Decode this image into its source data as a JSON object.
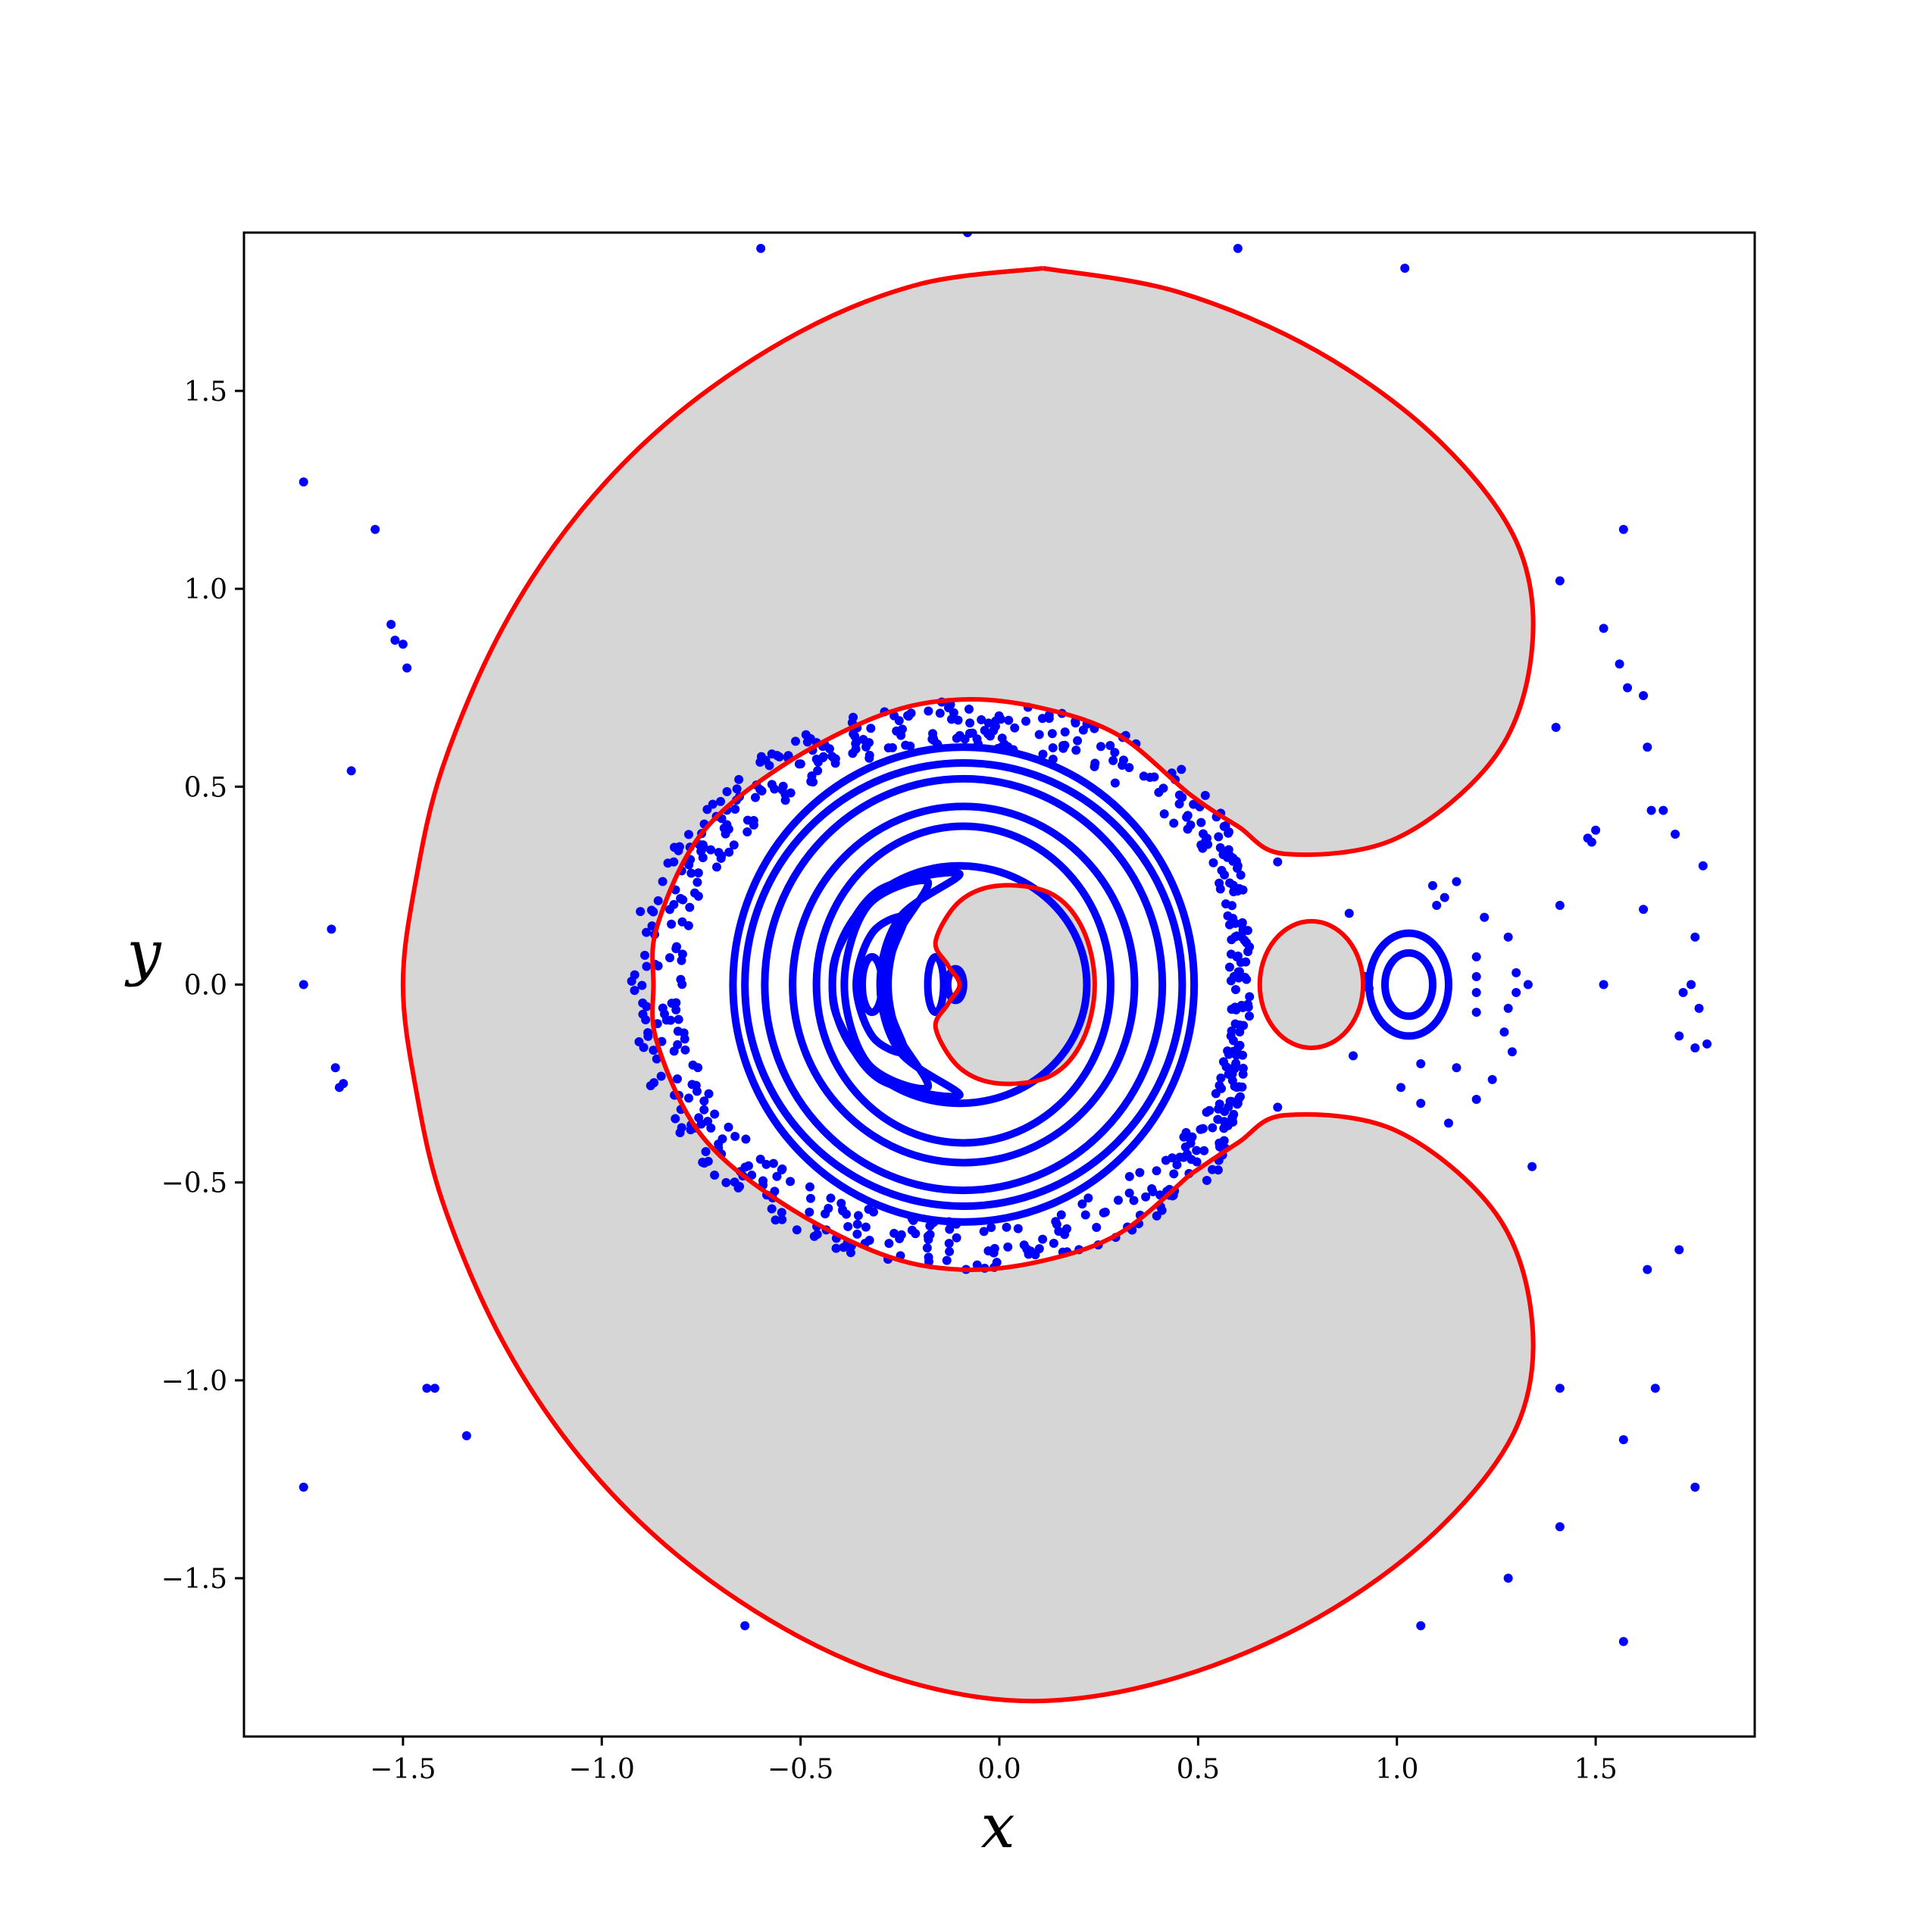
{
  "chart_data": {
    "type": "scatter",
    "title": "",
    "xlabel": "x",
    "ylabel": "y",
    "xlim": [
      -1.9,
      1.9
    ],
    "ylim": [
      -1.9,
      1.9
    ],
    "grid": false,
    "x_ticks": [
      -1.5,
      -1.0,
      -0.5,
      0.0,
      0.5,
      1.0,
      1.5
    ],
    "y_ticks": [
      -1.5,
      -1.0,
      -0.5,
      0.0,
      0.5,
      1.0,
      1.5
    ],
    "x_tick_labels": [
      "−1.5",
      "−1.0",
      "−0.5",
      "0.0",
      "0.5",
      "1.0",
      "1.5"
    ],
    "y_tick_labels": [
      "−1.5",
      "−1.0",
      "−0.5",
      "0.0",
      "0.5",
      "1.0",
      "1.5"
    ],
    "zero_velocity_curves": {
      "color": "#ff0000",
      "forbidden_fill": "#d6d6d6",
      "outer_boundary": [
        [
          0.11,
          1.81
        ],
        [
          -0.2,
          1.77
        ],
        [
          -0.5,
          1.65
        ],
        [
          -0.8,
          1.45
        ],
        [
          -1.05,
          1.2
        ],
        [
          -1.25,
          0.9
        ],
        [
          -1.4,
          0.55
        ],
        [
          -1.47,
          0.25
        ],
        [
          -1.5,
          0.0
        ],
        [
          -1.47,
          -0.25
        ],
        [
          -1.4,
          -0.55
        ],
        [
          -1.25,
          -0.9
        ],
        [
          -1.05,
          -1.2
        ],
        [
          -0.8,
          -1.45
        ],
        [
          -0.5,
          -1.65
        ],
        [
          -0.2,
          -1.77
        ],
        [
          0.11,
          -1.81
        ],
        [
          0.45,
          -1.75
        ],
        [
          0.8,
          -1.6
        ],
        [
          1.1,
          -1.38
        ],
        [
          1.3,
          -1.12
        ],
        [
          1.34,
          -0.85
        ],
        [
          1.25,
          -0.58
        ],
        [
          1.0,
          -0.37
        ],
        [
          0.72,
          -0.33
        ],
        [
          0.6,
          -0.4
        ],
        [
          0.48,
          -0.48
        ]
      ],
      "inner_boundary": [
        [
          0.48,
          -0.48
        ],
        [
          0.3,
          -0.63
        ],
        [
          0.1,
          -0.7
        ],
        [
          -0.1,
          -0.72
        ],
        [
          -0.3,
          -0.68
        ],
        [
          -0.55,
          -0.55
        ],
        [
          -0.75,
          -0.38
        ],
        [
          -0.86,
          -0.15
        ],
        [
          -0.87,
          0.0
        ],
        [
          -0.86,
          0.15
        ],
        [
          -0.75,
          0.38
        ],
        [
          -0.55,
          0.55
        ],
        [
          -0.3,
          0.68
        ],
        [
          -0.1,
          0.72
        ],
        [
          0.1,
          0.7
        ],
        [
          0.3,
          0.63
        ],
        [
          0.48,
          0.48
        ],
        [
          0.6,
          0.4
        ],
        [
          0.72,
          0.33
        ],
        [
          1.0,
          0.37
        ],
        [
          1.25,
          0.58
        ],
        [
          1.34,
          0.85
        ],
        [
          1.3,
          1.12
        ],
        [
          1.1,
          1.38
        ],
        [
          0.8,
          1.6
        ],
        [
          0.45,
          1.75
        ],
        [
          0.11,
          1.81
        ]
      ],
      "primary_region": [
        [
          0.24,
          0.0
        ],
        [
          0.21,
          0.14
        ],
        [
          0.13,
          0.23
        ],
        [
          0.0,
          0.25
        ],
        [
          -0.1,
          0.21
        ],
        [
          -0.16,
          0.11
        ],
        [
          -0.13,
          0.05
        ],
        [
          -0.1,
          0.0
        ],
        [
          -0.13,
          -0.05
        ],
        [
          -0.16,
          -0.11
        ],
        [
          -0.1,
          -0.21
        ],
        [
          0.0,
          -0.25
        ],
        [
          0.13,
          -0.23
        ],
        [
          0.21,
          -0.14
        ]
      ],
      "secondary_region": {
        "cx": 0.785,
        "cy": 0.0,
        "rx": 0.13,
        "ry": 0.16
      }
    },
    "orbit_series": {
      "color": "#0000ff",
      "invariant_curves": [
        {
          "type": "ellipse",
          "cx": -0.09,
          "cy": 0.0,
          "rx": 0.58,
          "ry": 0.6
        },
        {
          "type": "ellipse",
          "cx": -0.09,
          "cy": 0.0,
          "rx": 0.55,
          "ry": 0.56
        },
        {
          "type": "ellipse",
          "cx": -0.09,
          "cy": 0.0,
          "rx": 0.5,
          "ry": 0.52
        },
        {
          "type": "ellipse",
          "cx": -0.09,
          "cy": 0.0,
          "rx": 0.43,
          "ry": 0.45
        },
        {
          "type": "ellipse",
          "cx": -0.09,
          "cy": 0.0,
          "rx": 0.37,
          "ry": 0.4
        },
        {
          "type": "ellipse",
          "cx": -0.1,
          "cy": 0.0,
          "rx": 0.32,
          "ry": 0.3
        },
        {
          "type": "crescent",
          "pts": [
            [
              -0.1,
              0.28
            ],
            [
              -0.3,
              0.24
            ],
            [
              -0.4,
              0.1
            ],
            [
              -0.42,
              0.0
            ],
            [
              -0.4,
              -0.1
            ],
            [
              -0.3,
              -0.24
            ],
            [
              -0.1,
              -0.28
            ],
            [
              -0.25,
              -0.17
            ],
            [
              -0.3,
              0.0
            ],
            [
              -0.25,
              0.17
            ]
          ]
        },
        {
          "type": "crescent",
          "pts": [
            [
              -0.18,
              0.26
            ],
            [
              -0.33,
              0.2
            ],
            [
              -0.39,
              0.0
            ],
            [
              -0.33,
              -0.2
            ],
            [
              -0.18,
              -0.26
            ],
            [
              -0.26,
              -0.12
            ],
            [
              -0.29,
              0.0
            ],
            [
              -0.26,
              0.12
            ]
          ]
        },
        {
          "type": "crescent",
          "pts": [
            [
              -0.24,
              0.17
            ],
            [
              -0.32,
              0.13
            ],
            [
              -0.36,
              0.0
            ],
            [
              -0.32,
              -0.13
            ],
            [
              -0.24,
              -0.17
            ],
            [
              -0.27,
              -0.08
            ],
            [
              -0.28,
              0.0
            ],
            [
              -0.27,
              0.08
            ]
          ]
        },
        {
          "type": "ellipse",
          "cx": -0.32,
          "cy": 0.0,
          "rx": 0.025,
          "ry": 0.07
        },
        {
          "type": "ellipse",
          "cx": -0.16,
          "cy": 0.0,
          "rx": 0.02,
          "ry": 0.07
        },
        {
          "type": "ellipse",
          "cx": -0.11,
          "cy": 0.0,
          "rx": 0.02,
          "ry": 0.04
        },
        {
          "type": "ellipse",
          "cx": 1.03,
          "cy": 0.0,
          "rx": 0.1,
          "ry": 0.13
        },
        {
          "type": "ellipse",
          "cx": 1.03,
          "cy": 0.0,
          "rx": 0.06,
          "ry": 0.08
        }
      ],
      "scatter_points": [
        [
          -1.75,
          1.27
        ],
        [
          -1.57,
          1.15
        ],
        [
          -1.53,
          0.91
        ],
        [
          -1.52,
          0.87
        ],
        [
          -1.5,
          0.86
        ],
        [
          -1.49,
          0.8
        ],
        [
          -1.63,
          0.54
        ],
        [
          -1.68,
          0.14
        ],
        [
          -1.75,
          0.0
        ],
        [
          -1.67,
          -0.21
        ],
        [
          -1.66,
          -0.26
        ],
        [
          -1.65,
          -0.25
        ],
        [
          -1.44,
          -1.02
        ],
        [
          -1.42,
          -1.02
        ],
        [
          -1.34,
          -1.14
        ],
        [
          -1.75,
          -1.27
        ],
        [
          -0.6,
          1.86
        ],
        [
          -0.08,
          1.9
        ],
        [
          0.6,
          1.86
        ],
        [
          1.02,
          1.81
        ],
        [
          1.57,
          1.15
        ],
        [
          1.41,
          1.02
        ],
        [
          1.52,
          0.9
        ],
        [
          1.56,
          0.81
        ],
        [
          1.58,
          0.75
        ],
        [
          1.62,
          0.73
        ],
        [
          1.63,
          0.6
        ],
        [
          1.4,
          0.65
        ],
        [
          1.64,
          0.44
        ],
        [
          1.67,
          0.44
        ],
        [
          1.7,
          0.38
        ],
        [
          1.77,
          0.3
        ],
        [
          1.5,
          0.39
        ],
        [
          1.48,
          0.37
        ],
        [
          1.49,
          0.36
        ],
        [
          1.41,
          0.2
        ],
        [
          1.62,
          0.19
        ],
        [
          1.75,
          0.12
        ],
        [
          1.72,
          -0.02
        ],
        [
          1.74,
          0.0
        ],
        [
          1.76,
          -0.06
        ],
        [
          1.52,
          0.0
        ],
        [
          1.71,
          -0.13
        ],
        [
          1.75,
          -0.16
        ],
        [
          1.78,
          -0.15
        ],
        [
          1.34,
          -0.46
        ],
        [
          1.71,
          -0.67
        ],
        [
          1.63,
          -0.72
        ],
        [
          1.41,
          -1.02
        ],
        [
          1.65,
          -1.02
        ],
        [
          1.57,
          -1.15
        ],
        [
          1.75,
          -1.27
        ],
        [
          1.41,
          -1.37
        ],
        [
          1.28,
          -1.5
        ],
        [
          1.06,
          -1.62
        ],
        [
          1.57,
          -1.66
        ],
        [
          -0.64,
          -1.62
        ],
        [
          1.15,
          0.26
        ],
        [
          1.12,
          0.22
        ],
        [
          1.09,
          0.25
        ],
        [
          1.1,
          0.2
        ],
        [
          1.22,
          0.17
        ],
        [
          1.28,
          0.12
        ],
        [
          1.2,
          0.07
        ],
        [
          1.2,
          0.02
        ],
        [
          1.2,
          -0.02
        ],
        [
          1.2,
          -0.07
        ],
        [
          1.28,
          -0.06
        ],
        [
          1.3,
          -0.02
        ],
        [
          1.33,
          0.0
        ],
        [
          1.3,
          0.03
        ],
        [
          1.27,
          -0.12
        ],
        [
          1.29,
          -0.17
        ],
        [
          1.24,
          -0.24
        ],
        [
          1.2,
          -0.29
        ],
        [
          1.06,
          -0.2
        ],
        [
          1.01,
          -0.26
        ],
        [
          1.06,
          -0.3
        ],
        [
          1.13,
          -0.35
        ],
        [
          1.15,
          -0.21
        ],
        [
          0.92,
          0.02
        ],
        [
          0.93,
          -0.01
        ],
        [
          0.88,
          0.18
        ],
        [
          0.89,
          -0.18
        ],
        [
          0.7,
          0.31
        ],
        [
          0.7,
          -0.31
        ],
        [
          0.6,
          0.3
        ],
        [
          0.6,
          -0.3
        ]
      ]
    }
  }
}
